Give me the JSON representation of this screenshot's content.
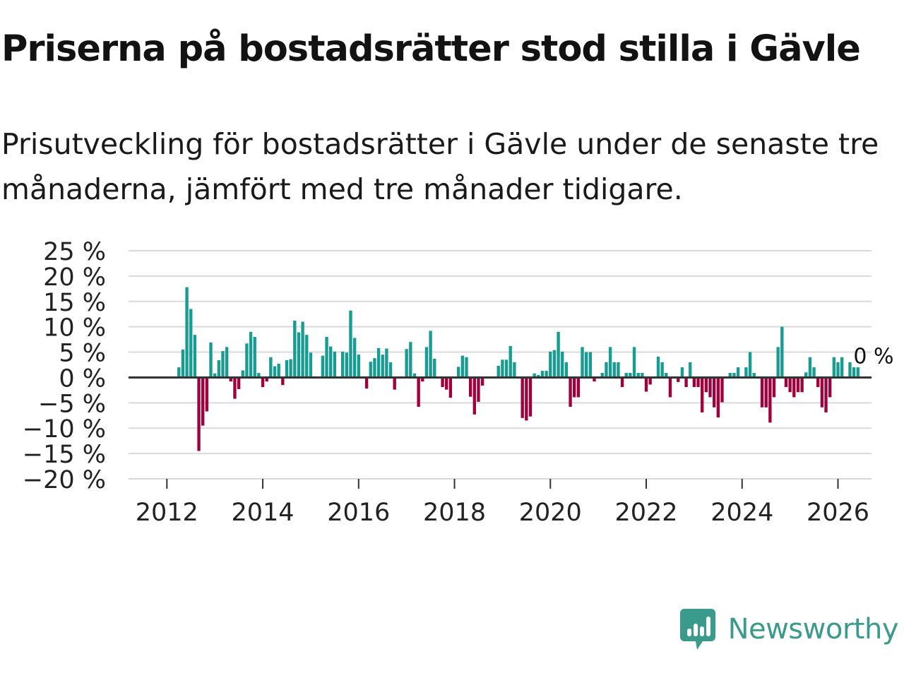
{
  "title": "Priserna på bostadsrätter stod stilla i Gävle",
  "subtitle": "Prisutveckling för bostadsrätter i Gävle under de senaste tre månaderna, jämfört med tre månader tidigare.",
  "brand": {
    "name": "Newsworthy",
    "color": "#3a9b8c"
  },
  "colors": {
    "positive": "#169c91",
    "negative": "#a1003c",
    "grid": "#d9d9d9",
    "zero_line": "#333333",
    "text": "#222222"
  },
  "chart_data": {
    "type": "bar",
    "title": "Prisutveckling för bostadsrätter i Gävle",
    "xlabel": "",
    "ylabel": "",
    "ylim": [
      -20,
      25
    ],
    "yticks": [
      25,
      20,
      15,
      10,
      5,
      0,
      -5,
      -10,
      -15,
      -20
    ],
    "ytick_labels": [
      "25 %",
      "20 %",
      "15 %",
      "10 %",
      "5 %",
      "0 %",
      "−5 %",
      "−10 %",
      "−15 %",
      "−20 %"
    ],
    "xlim": [
      2011.2,
      2026.7
    ],
    "xticks": [
      2012,
      2014,
      2016,
      2018,
      2020,
      2022,
      2024,
      2026
    ],
    "xtick_labels": [
      "2012",
      "2014",
      "2016",
      "2018",
      "2020",
      "2022",
      "2024",
      "2026"
    ],
    "start_year": 2012,
    "start_month": 1,
    "grid": true,
    "annotation": "0 %",
    "unit": "%",
    "values": [
      0,
      0,
      0,
      2,
      5.5,
      17.8,
      13.5,
      8.4,
      -14.5,
      -9.5,
      -6.7,
      6.9,
      0.8,
      3.4,
      5.2,
      6,
      -0.8,
      -4.2,
      -2.3,
      1.4,
      6.7,
      9,
      8,
      0.9,
      -1.9,
      -0.8,
      4,
      2.2,
      2.7,
      -1.5,
      3.4,
      3.6,
      11.2,
      8.9,
      11,
      8.4,
      4.9,
      0,
      0,
      4.3,
      8,
      6.1,
      5.1,
      0,
      5.1,
      4.9,
      13.2,
      7.8,
      4.5,
      0,
      -2.2,
      3.1,
      3.8,
      5.8,
      4.5,
      5.7,
      3,
      -2.4,
      0,
      0,
      5.6,
      7,
      0.8,
      -5.8,
      -0.8,
      6,
      9.2,
      3.7,
      0,
      -1.9,
      -2.4,
      -4,
      0,
      2.1,
      4.3,
      4,
      -3.8,
      -7.3,
      -4.8,
      -1.6,
      0,
      0,
      0,
      2.3,
      3.5,
      3.5,
      6.2,
      3,
      0,
      -8,
      -8.5,
      -7.7,
      0.8,
      0.5,
      1.3,
      1.3,
      5.1,
      5.4,
      9,
      5.1,
      3,
      -5.8,
      -3.9,
      -3.9,
      6,
      5,
      5,
      -0.8,
      0,
      0.9,
      3,
      6,
      3,
      3,
      -1.9,
      0.9,
      0.9,
      6,
      0.9,
      0.9,
      -2.8,
      -1.4,
      0,
      4.1,
      3,
      0.9,
      -3.9,
      0,
      -0.9,
      2,
      -1.9,
      3,
      -1.9,
      -1.9,
      -6.9,
      -2.9,
      -3.9,
      -5.9,
      -7.9,
      -4.9,
      0,
      0.9,
      0.9,
      2,
      0,
      2,
      5,
      0.9,
      0,
      -5.9,
      -5.9,
      -8.9,
      -3.9,
      6,
      10,
      -1.9,
      -2.9,
      -3.9,
      -2.9,
      -2.9,
      1,
      4,
      2,
      -1.9,
      -5.9,
      -6.9,
      -3.9,
      4,
      3,
      4,
      0,
      3,
      2,
      2,
      0
    ]
  }
}
